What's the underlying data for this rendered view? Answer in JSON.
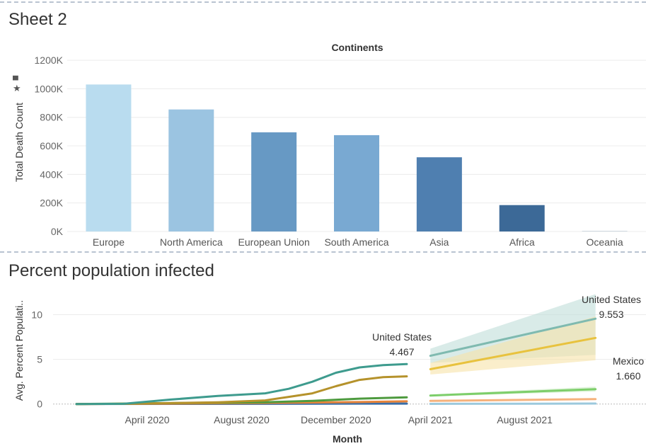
{
  "sheet1": {
    "title": "Sheet 2",
    "icons": [
      "sort-icon",
      "pin-icon"
    ]
  },
  "sheet2": {
    "title": "Percent population infected"
  },
  "chart_data": [
    {
      "type": "bar",
      "title": "Continents",
      "xlabel": "",
      "ylabel": "Total Death Count",
      "categories": [
        "Europe",
        "North America",
        "European Union",
        "South America",
        "Asia",
        "Africa",
        "Oceania"
      ],
      "values": [
        1030000,
        855000,
        695000,
        675000,
        520000,
        185000,
        1000
      ],
      "ylim": [
        0,
        1250000
      ],
      "yticks": [
        0,
        200000,
        400000,
        600000,
        800000,
        1000000,
        1200000
      ],
      "yticklabels": [
        "0K",
        "200K",
        "400K",
        "600K",
        "800K",
        "1000K",
        "1200K"
      ],
      "colors": [
        "#b9dcef",
        "#9bc4e1",
        "#6799c4",
        "#79a9d2",
        "#4f7fb0",
        "#3c6997",
        "#2d5a86"
      ],
      "grid": true
    },
    {
      "type": "line",
      "xlabel": "Month",
      "ylabel": "Avg. Percent Populati..",
      "xlim": [
        "2020-01",
        "2021-12"
      ],
      "xticks": [
        "2020-04",
        "2020-08",
        "2020-12",
        "2021-04",
        "2021-08"
      ],
      "xticklabels": [
        "April 2020",
        "August 2020",
        "December 2020",
        "April 2021",
        "August 2021"
      ],
      "ylim": [
        -0.5,
        12.5
      ],
      "yticks": [
        0,
        5,
        10
      ],
      "yticklabels": [
        "0",
        "5",
        "10"
      ],
      "grid": true,
      "series": [
        {
          "name": "United States",
          "color": "#3e9b8e",
          "x": [
            "2020-01",
            "2020-03",
            "2020-05",
            "2020-07",
            "2020-09",
            "2020-10",
            "2020-11",
            "2020-12",
            "2021-01",
            "2021-02",
            "2021-03"
          ],
          "values": [
            0,
            0.02,
            0.5,
            0.9,
            1.2,
            1.7,
            2.5,
            3.5,
            4.1,
            4.35,
            4.467
          ]
        },
        {
          "color": "#b5922b",
          "x": [
            "2020-01",
            "2020-03",
            "2020-05",
            "2020-07",
            "2020-09",
            "2020-10",
            "2020-11",
            "2020-12",
            "2021-01",
            "2021-02",
            "2021-03"
          ],
          "values": [
            0,
            0.02,
            0.1,
            0.2,
            0.4,
            0.8,
            1.2,
            2.0,
            2.7,
            3.0,
            3.1
          ]
        },
        {
          "color": "#4e9a3e",
          "x": [
            "2020-01",
            "2020-03",
            "2020-05",
            "2020-07",
            "2020-09",
            "2020-11",
            "2021-01",
            "2021-03"
          ],
          "values": [
            0,
            0.05,
            0.1,
            0.15,
            0.2,
            0.35,
            0.6,
            0.75
          ]
        },
        {
          "color": "#e6843a",
          "x": [
            "2020-01",
            "2020-05",
            "2020-09",
            "2021-01",
            "2021-03"
          ],
          "values": [
            0,
            0.05,
            0.12,
            0.22,
            0.3
          ]
        },
        {
          "color": "#3a6ea8",
          "x": [
            "2020-01",
            "2021-03"
          ],
          "values": [
            0,
            0.05
          ]
        }
      ],
      "forecast": [
        {
          "name": "United States",
          "color": "#7fbab0",
          "band": "#bfddd8",
          "x": [
            "2021-04",
            "2021-11"
          ],
          "values": [
            5.4,
            9.553
          ],
          "lower": [
            4.6,
            5.5
          ],
          "upper": [
            6.2,
            12.3
          ]
        },
        {
          "color": "#e8c23e",
          "band": "#f6e3a8",
          "x": [
            "2021-04",
            "2021-11"
          ],
          "values": [
            3.9,
            7.4
          ],
          "lower": [
            3.3,
            4.9
          ],
          "upper": [
            4.6,
            9.8
          ]
        },
        {
          "name": "Mexico",
          "color": "#7dce6a",
          "band": "#c9ebc1",
          "x": [
            "2021-04",
            "2021-11"
          ],
          "values": [
            0.95,
            1.66
          ],
          "lower": [
            0.85,
            1.4
          ],
          "upper": [
            1.05,
            1.95
          ]
        },
        {
          "color": "#f5b27c",
          "band": "#fbdcc2",
          "x": [
            "2021-04",
            "2021-11"
          ],
          "values": [
            0.35,
            0.55
          ],
          "lower": [
            0.3,
            0.45
          ],
          "upper": [
            0.4,
            0.65
          ]
        },
        {
          "color": "#9cc9dd",
          "band": "#d6eaf2",
          "x": [
            "2021-04",
            "2021-11"
          ],
          "values": [
            0.02,
            0.05
          ],
          "lower": [
            0.0,
            0.0
          ],
          "upper": [
            0.04,
            0.1
          ]
        }
      ],
      "annotations": [
        {
          "label": "United States",
          "value": "4.467",
          "at": "2021-03"
        },
        {
          "label": "United States",
          "value": "9.553",
          "at": "2021-11"
        },
        {
          "label": "Mexico",
          "value": "1.660",
          "at": "2021-11"
        }
      ]
    }
  ]
}
